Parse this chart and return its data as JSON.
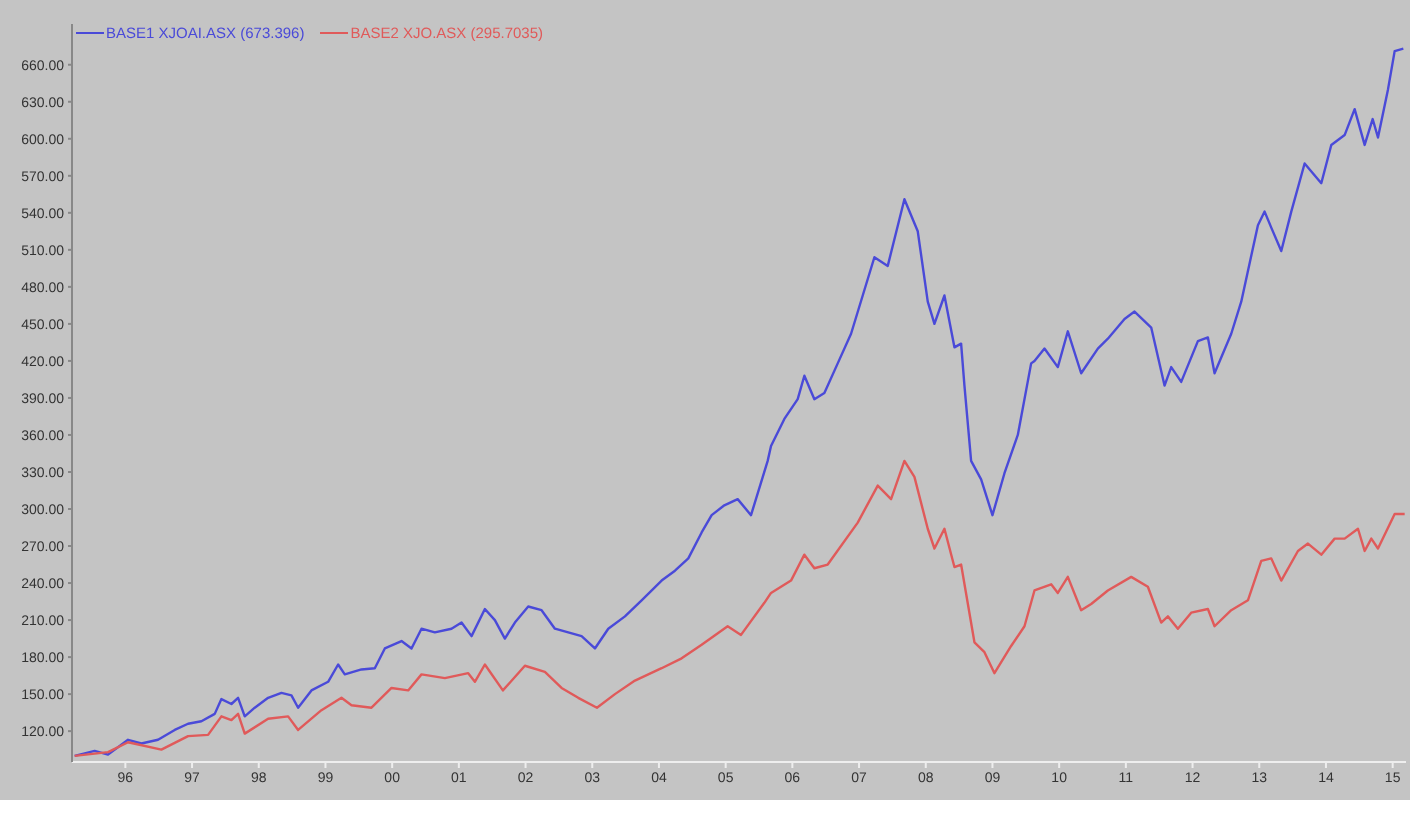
{
  "chart_data": {
    "type": "line",
    "legend": "top left",
    "grid": false,
    "xlim": [
      1995.2,
      2015.2
    ],
    "ylim": [
      95,
      693
    ],
    "xticks": [
      {
        "value": 1996,
        "label": "96"
      },
      {
        "value": 1997,
        "label": "97"
      },
      {
        "value": 1998,
        "label": "98"
      },
      {
        "value": 1999,
        "label": "99"
      },
      {
        "value": 2000,
        "label": "00"
      },
      {
        "value": 2001,
        "label": "01"
      },
      {
        "value": 2002,
        "label": "02"
      },
      {
        "value": 2003,
        "label": "03"
      },
      {
        "value": 2004,
        "label": "04"
      },
      {
        "value": 2005,
        "label": "05"
      },
      {
        "value": 2006,
        "label": "06"
      },
      {
        "value": 2007,
        "label": "07"
      },
      {
        "value": 2008,
        "label": "08"
      },
      {
        "value": 2009,
        "label": "09"
      },
      {
        "value": 2010,
        "label": "10"
      },
      {
        "value": 2011,
        "label": "11"
      },
      {
        "value": 2012,
        "label": "12"
      },
      {
        "value": 2013,
        "label": "13"
      },
      {
        "value": 2014,
        "label": "14"
      },
      {
        "value": 2015,
        "label": "15"
      }
    ],
    "yticks": [
      {
        "value": 120,
        "label": "120.00"
      },
      {
        "value": 150,
        "label": "150.00"
      },
      {
        "value": 180,
        "label": "180.00"
      },
      {
        "value": 210,
        "label": "210.00"
      },
      {
        "value": 240,
        "label": "240.00"
      },
      {
        "value": 270,
        "label": "270.00"
      },
      {
        "value": 300,
        "label": "300.00"
      },
      {
        "value": 330,
        "label": "330.00"
      },
      {
        "value": 360,
        "label": "360.00"
      },
      {
        "value": 390,
        "label": "390.00"
      },
      {
        "value": 420,
        "label": "420.00"
      },
      {
        "value": 450,
        "label": "450.00"
      },
      {
        "value": 480,
        "label": "480.00"
      },
      {
        "value": 510,
        "label": "510.00"
      },
      {
        "value": 540,
        "label": "540.00"
      },
      {
        "value": 570,
        "label": "570.00"
      },
      {
        "value": 600,
        "label": "600.00"
      },
      {
        "value": 630,
        "label": "630.00"
      },
      {
        "value": 660,
        "label": "660.00"
      }
    ],
    "series": [
      {
        "name": "BASE1 XJOAI.ASX (673.396)",
        "color": "#4a4ad8",
        "x": [
          1995.24,
          1995.54,
          1995.74,
          1996.04,
          1996.24,
          1996.49,
          1996.74,
          1996.94,
          1997.14,
          1997.34,
          1997.44,
          1997.59,
          1997.69,
          1997.79,
          1997.94,
          1998.14,
          1998.34,
          1998.49,
          1998.59,
          1998.79,
          1999.04,
          1999.19,
          1999.29,
          1999.54,
          1999.74,
          1999.89,
          2000.14,
          2000.29,
          2000.44,
          2000.64,
          2000.89,
          2001.04,
          2001.19,
          2001.39,
          2001.54,
          2001.69,
          2001.84,
          2002.04,
          2002.24,
          2002.44,
          2002.64,
          2002.84,
          2003.04,
          2003.24,
          2003.49,
          2003.74,
          2004.04,
          2004.24,
          2004.44,
          2004.64,
          2004.79,
          2004.98,
          2005.18,
          2005.38,
          2005.63,
          2005.68,
          2005.88,
          2006.08,
          2006.18,
          2006.33,
          2006.48,
          2006.68,
          2006.88,
          2007.23,
          2007.43,
          2007.68,
          2007.88,
          2008.03,
          2008.13,
          2008.28,
          2008.43,
          2008.53,
          2008.58,
          2008.68,
          2008.83,
          2009.0,
          2009.18,
          2009.38,
          2009.58,
          2009.63,
          2009.78,
          2009.98,
          2010.13,
          2010.33,
          2010.58,
          2010.73,
          2010.98,
          2011.13,
          2011.38,
          2011.58,
          2011.68,
          2011.83,
          2012.08,
          2012.23,
          2012.33,
          2012.58,
          2012.73,
          2012.98,
          2013.08,
          2013.18,
          2013.33,
          2013.48,
          2013.68,
          2013.93,
          2014.08,
          2014.28,
          2014.43,
          2014.58,
          2014.7,
          2014.78,
          2014.93,
          2015.03,
          2015.16
        ],
        "values": [
          100,
          104,
          101,
          113,
          110,
          113,
          121,
          126,
          128,
          134,
          146,
          142,
          147,
          132,
          139,
          147,
          151,
          149,
          139,
          153,
          160,
          174,
          166,
          170,
          171,
          187,
          193,
          187,
          203,
          200,
          203,
          208,
          197,
          219,
          210,
          195,
          208,
          221,
          218,
          203,
          200,
          197,
          187,
          203,
          213,
          226,
          242,
          250,
          260,
          281,
          295,
          303,
          308,
          295,
          339,
          351,
          373,
          389,
          408,
          389,
          394,
          418,
          442,
          504,
          497,
          551,
          525,
          468,
          450,
          473,
          431,
          434,
          400,
          339,
          324,
          295,
          329,
          360,
          418,
          420,
          430,
          415,
          444,
          410,
          430,
          438,
          454,
          460,
          447,
          400,
          415,
          403,
          436,
          439,
          410,
          442,
          468,
          530,
          541,
          528,
          509,
          541,
          580,
          564,
          595,
          603,
          624,
          595,
          616,
          601,
          640,
          671,
          673
        ]
      },
      {
        "name": "BASE2 XJO.ASX (295.7035)",
        "color": "#e05a5a",
        "x": [
          1995.24,
          1995.74,
          1996.04,
          1996.54,
          1996.94,
          1997.24,
          1997.44,
          1997.59,
          1997.69,
          1997.79,
          1998.14,
          1998.44,
          1998.59,
          1998.94,
          1999.24,
          1999.39,
          1999.69,
          1999.99,
          2000.24,
          2000.44,
          2000.79,
          2001.14,
          2001.24,
          2001.39,
          2001.66,
          2001.99,
          2002.29,
          2002.54,
          2002.79,
          2003.07,
          2003.34,
          2003.64,
          2004.04,
          2004.34,
          2004.64,
          2005.03,
          2005.23,
          2005.58,
          2005.68,
          2005.98,
          2006.18,
          2006.33,
          2006.53,
          2006.98,
          2007.28,
          2007.48,
          2007.68,
          2007.83,
          2008.03,
          2008.13,
          2008.28,
          2008.43,
          2008.53,
          2008.73,
          2008.88,
          2009.03,
          2009.28,
          2009.48,
          2009.63,
          2009.88,
          2009.98,
          2010.13,
          2010.33,
          2010.48,
          2010.73,
          2011.08,
          2011.33,
          2011.53,
          2011.63,
          2011.78,
          2011.98,
          2012.23,
          2012.33,
          2012.58,
          2012.83,
          2013.03,
          2013.18,
          2013.33,
          2013.58,
          2013.73,
          2013.93,
          2014.13,
          2014.28,
          2014.48,
          2014.58,
          2014.68,
          2014.78,
          2015.03,
          2015.18
        ],
        "values": [
          100,
          103,
          111,
          105,
          116,
          117,
          132,
          129,
          134,
          118,
          130,
          132,
          121,
          137,
          147,
          141,
          139,
          155,
          153,
          166,
          163,
          167,
          160,
          174,
          153,
          173,
          168,
          155,
          147,
          139,
          150,
          161,
          171,
          179,
          190,
          205,
          198,
          224,
          232,
          242,
          263,
          252,
          255,
          289,
          319,
          308,
          339,
          326,
          284,
          268,
          284,
          253,
          255,
          192,
          184,
          167,
          189,
          205,
          234,
          239,
          232,
          245,
          218,
          223,
          234,
          245,
          237,
          208,
          213,
          203,
          216,
          219,
          205,
          218,
          226,
          258,
          260,
          242,
          266,
          272,
          263,
          276,
          276,
          284,
          266,
          276,
          268,
          296,
          296
        ]
      }
    ]
  }
}
